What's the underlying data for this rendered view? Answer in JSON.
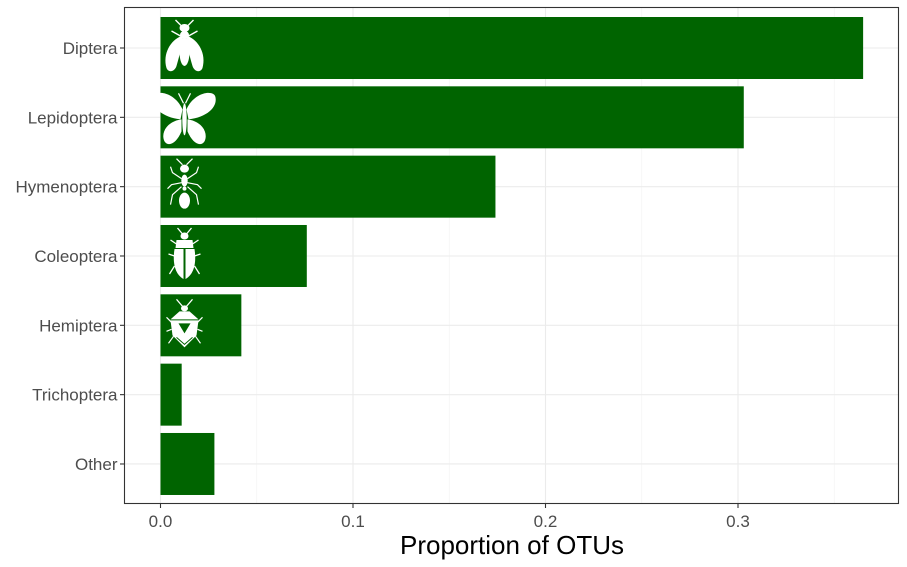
{
  "chart_data": {
    "type": "bar",
    "orientation": "horizontal",
    "categories": [
      "Diptera",
      "Lepidoptera",
      "Hymenoptera",
      "Coleoptera",
      "Hemiptera",
      "Trichoptera",
      "Other"
    ],
    "values": [
      0.365,
      0.303,
      0.174,
      0.076,
      0.042,
      0.011,
      0.028
    ],
    "icons": [
      "fly-icon",
      "butterfly-icon",
      "ant-icon",
      "beetle-icon",
      "stink-bug-icon",
      "",
      ""
    ],
    "xlabel": "Proportion of OTUs",
    "ylabel": "",
    "xlim": [
      -0.02,
      0.385
    ],
    "xticks": [
      0.0,
      0.1,
      0.2,
      0.3
    ],
    "xtick_labels": [
      "0.0",
      "0.1",
      "0.2",
      "0.3"
    ],
    "grid": true,
    "bar_color": "#006400",
    "icon_color": "#ffffff"
  }
}
